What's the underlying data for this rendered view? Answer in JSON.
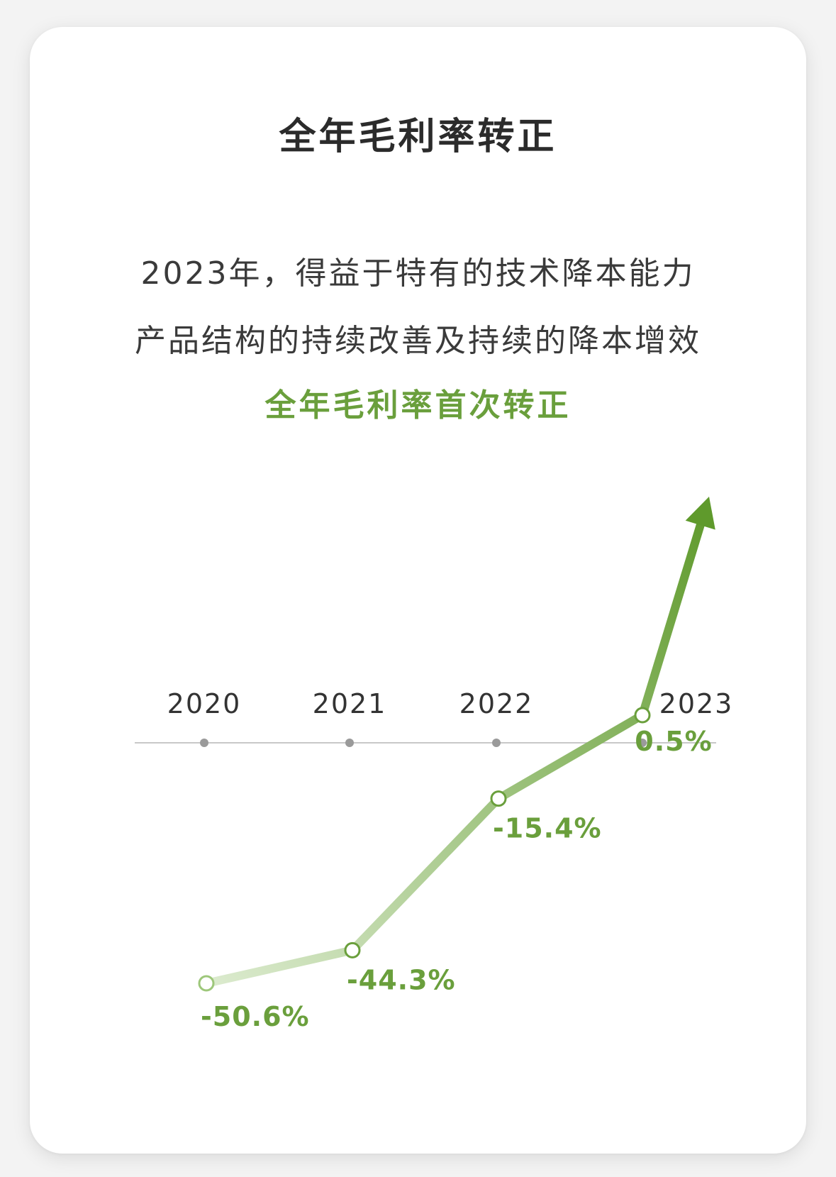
{
  "heading": {
    "title": "全年毛利率转正",
    "line1": "2023年，得益于特有的技术降本能力",
    "line2": "产品结构的持续改善及持续的降本增效",
    "highlight": "全年毛利率首次转正"
  },
  "colors": {
    "accent": "#6a9f3c",
    "line_start": "#dcebcf",
    "line_end": "#5f9a2c",
    "axis": "#c8c8c8",
    "tick_dot": "#9a9a9a",
    "year_text": "#333333"
  },
  "chart_data": {
    "type": "line",
    "title": "全年毛利率转正",
    "categories": [
      "2020",
      "2021",
      "2022",
      "2023"
    ],
    "series": [
      {
        "values": [
          -50.6,
          -44.3,
          -15.4,
          0.5
        ],
        "labels": [
          "-50.6%",
          "-44.3%",
          "-15.4%",
          "0.5%"
        ]
      }
    ],
    "xlabel": "",
    "ylabel": "",
    "grid": false,
    "trend_arrow": "up"
  }
}
